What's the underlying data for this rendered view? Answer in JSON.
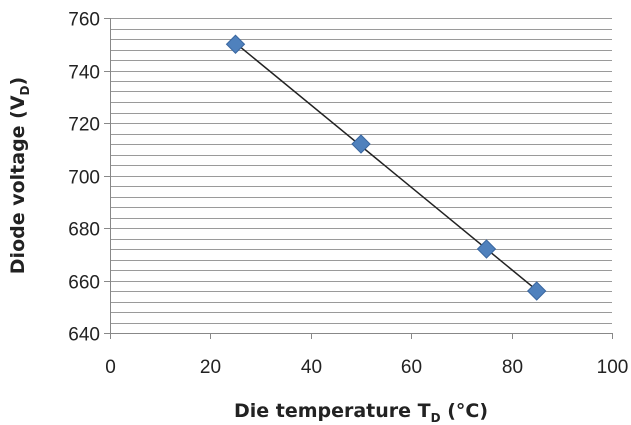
{
  "chart_data": {
    "type": "scatter",
    "xlabel": "Die temperature T",
    "xlabel_sub": "D",
    "xlabel_suffix": " (°C)",
    "ylabel": "Diode voltage (V",
    "ylabel_sub": "D",
    "ylabel_suffix": ")",
    "xlim": [
      0,
      100
    ],
    "ylim": [
      640,
      760
    ],
    "x_ticks": [
      0,
      20,
      40,
      60,
      80,
      100
    ],
    "y_ticks": [
      640,
      660,
      680,
      700,
      720,
      740,
      760
    ],
    "y_minor_step": 4,
    "grid": true,
    "legend": "none",
    "trendline": "linear",
    "series": [
      {
        "x": [
          25,
          50,
          75,
          85
        ],
        "y": [
          750,
          712,
          672,
          656
        ],
        "marker": "diamond",
        "color": "#4f81bd"
      }
    ],
    "colors": {
      "marker_fill": "#4f81bd",
      "marker_stroke": "#3a67a0",
      "trendline": "#222222",
      "grid": "#9a9a9a",
      "axis": "#888888"
    }
  }
}
